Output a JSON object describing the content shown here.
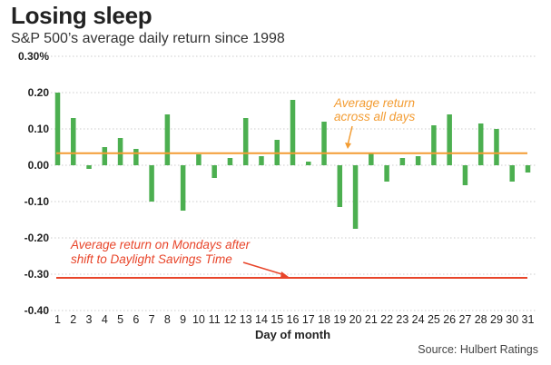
{
  "title": "Losing sleep",
  "subtitle": "S&P 500’s average daily return since 1998",
  "source": "Source: Hulbert Ratings",
  "chart_data": {
    "type": "bar",
    "title": "Losing sleep",
    "subtitle": "S&P 500’s average daily return since 1998",
    "xlabel": "Day of month",
    "ylabel": "",
    "categories": [
      "1",
      "2",
      "3",
      "4",
      "5",
      "6",
      "7",
      "8",
      "9",
      "10",
      "11",
      "12",
      "13",
      "14",
      "15",
      "16",
      "17",
      "18",
      "19",
      "20",
      "21",
      "22",
      "23",
      "24",
      "25",
      "26",
      "27",
      "28",
      "29",
      "30",
      "31"
    ],
    "values": [
      0.2,
      0.13,
      -0.01,
      0.05,
      0.075,
      0.045,
      -0.1,
      0.14,
      -0.125,
      0.03,
      -0.035,
      0.02,
      0.13,
      0.025,
      0.07,
      0.18,
      0.01,
      0.12,
      -0.115,
      -0.175,
      0.035,
      -0.045,
      0.02,
      0.025,
      0.11,
      0.14,
      -0.055,
      0.115,
      0.1,
      -0.045,
      -0.02
    ],
    "ylim": [
      -0.4,
      0.3
    ],
    "yticks": [
      0.3,
      0.2,
      0.1,
      0.0,
      -0.1,
      -0.2,
      -0.3,
      -0.4
    ],
    "ytick_labels": [
      "0.30%",
      "0.20",
      "0.10",
      "0.00",
      "-0.10",
      "-0.20",
      "-0.30",
      "-0.40"
    ],
    "grid": true,
    "bar_color": "#4caf50",
    "reference_lines": [
      {
        "label_lines": [
          "Average return",
          "across all days"
        ],
        "value": 0.033,
        "color": "#f39c32"
      },
      {
        "label_lines": [
          "Average return on Mondays after",
          "shift to Daylight Savings Time"
        ],
        "value": -0.31,
        "color": "#e8452a"
      }
    ]
  }
}
